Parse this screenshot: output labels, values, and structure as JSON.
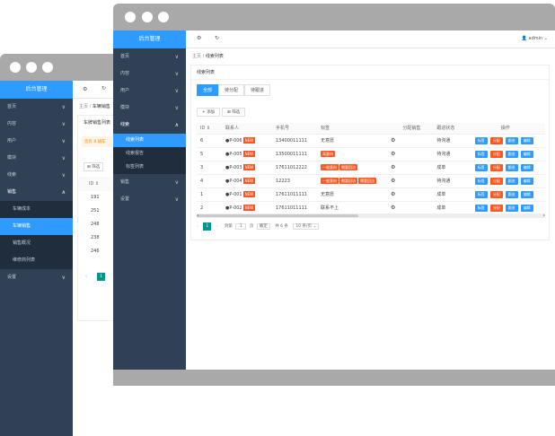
{
  "back": {
    "logo": "后台管理",
    "menu": [
      {
        "label": "首页",
        "chev": "∨"
      },
      {
        "label": "内容",
        "chev": "∨"
      },
      {
        "label": "用户",
        "chev": "∨"
      },
      {
        "label": "模块",
        "chev": "∨"
      },
      {
        "label": "线索",
        "chev": "∨"
      },
      {
        "label": "销售",
        "chev": "∧"
      }
    ],
    "submenu": [
      "车辆成本",
      "车辆销售",
      "销售概况",
      "维修商列表"
    ],
    "settings": {
      "label": "设置",
      "chev": "∨"
    },
    "breadcrumb": {
      "home": "主页",
      "sep": "/",
      "page": "车辆销售"
    },
    "title": "车牌销售列表",
    "warning": "您有 8 辆车",
    "filter_label": "筛选",
    "id_header": "ID",
    "ids": [
      "191",
      "251",
      "248",
      "238",
      "246"
    ],
    "page_num": "1"
  },
  "front": {
    "logo": "后台管理",
    "header": {
      "gear": "⚙",
      "refresh": "↻",
      "user": "admin"
    },
    "menu": [
      {
        "label": "首页",
        "chev": "∨"
      },
      {
        "label": "内容",
        "chev": "∨"
      },
      {
        "label": "用户",
        "chev": "∨"
      },
      {
        "label": "模块",
        "chev": "∨"
      },
      {
        "label": "线索",
        "chev": "∧"
      }
    ],
    "submenu": [
      "线索列表",
      "线索报告",
      "标签列表"
    ],
    "menu2": [
      {
        "label": "销售",
        "chev": "∨"
      },
      {
        "label": "设置",
        "chev": "∨"
      }
    ],
    "breadcrumb": {
      "home": "主页",
      "sep": "/",
      "page": "线索列表"
    },
    "card_title": "线索列表",
    "tabs": [
      "全部",
      "待分配",
      "待跟进"
    ],
    "add_label": "+ 添加",
    "filter_label": "筛选",
    "columns": [
      "ID",
      "联系人",
      "手机号",
      "标签",
      "",
      "分配销售",
      "跟进状态",
      "操作"
    ],
    "rows": [
      {
        "id": "6",
        "name": "●P-006",
        "new": "NEW",
        "phone": "13400011111",
        "tags": [],
        "tagtext": "无意愿",
        "status": "待沟通"
      },
      {
        "id": "5",
        "name": "●P-005",
        "new": "NEW",
        "phone": "13500011111",
        "tags": [
          "高意向"
        ],
        "tagtext": "",
        "status": "待沟通"
      },
      {
        "id": "3",
        "name": "●P-003",
        "new": "NEW",
        "phone": "17611012222",
        "tags": [
          "一般意向",
          "需要回访"
        ],
        "tagtext": "",
        "status": "成单"
      },
      {
        "id": "4",
        "name": "●P-004",
        "new": "NEW",
        "phone": "12223",
        "tags": [
          "一般意向",
          "需要回访",
          "需要回访"
        ],
        "tagtext": "",
        "status": "待沟通"
      },
      {
        "id": "1",
        "name": "●P-001",
        "new": "NEW",
        "phone": "17611011111",
        "tags": [],
        "tagtext": "无意愿",
        "status": "成单"
      },
      {
        "id": "2",
        "name": "●P-002",
        "new": "NEW",
        "phone": "17611011111",
        "tags": [],
        "tagtext": "联系不上",
        "status": "成单"
      }
    ],
    "actions": [
      "标签",
      "分配",
      "跟进",
      "编辑"
    ],
    "pager": {
      "current": "1",
      "goto": "到第",
      "page": "页",
      "confirm": "确定",
      "total": "共 6 条",
      "size": "10 条/页"
    }
  },
  "colors": {
    "accent": "#2f9bff",
    "sidebar": "#304156",
    "danger": "#ff5722"
  }
}
